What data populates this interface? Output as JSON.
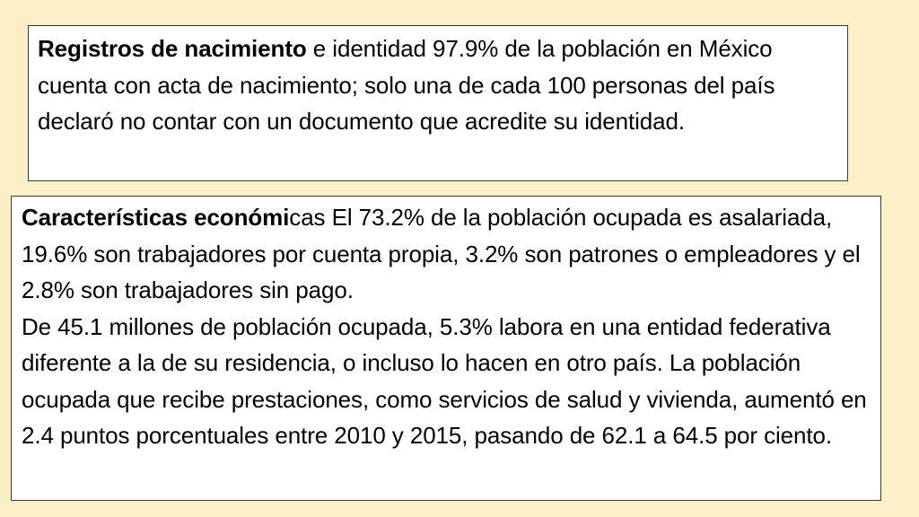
{
  "box_registros": {
    "heading": "Registros de nacimiento",
    "text": " e identidad 97.9% de la población en México cuenta con acta de nacimiento; solo una de cada 100 personas del país declaró no contar con un documento que acredite su identidad."
  },
  "box_economicas": {
    "heading": "Características económi",
    "text_1": "cas El 73.2% de la población ocupada es asalariada, 19.6% son trabajadores por cuenta propia, 3.2% son patrones o empleadores y el 2.8% son trabajadores sin pago.",
    "text_2": "De 45.1 millones de población ocupada, 5.3% labora en una entidad federativa diferente a la de su residencia, o incluso lo hacen en otro país. La población ocupada que recibe prestaciones, como servicios de salud y vivienda, aumentó en 2.4 puntos porcentuales entre 2010 y 2015, pasando de 62.1 a 64.5 por ciento."
  }
}
